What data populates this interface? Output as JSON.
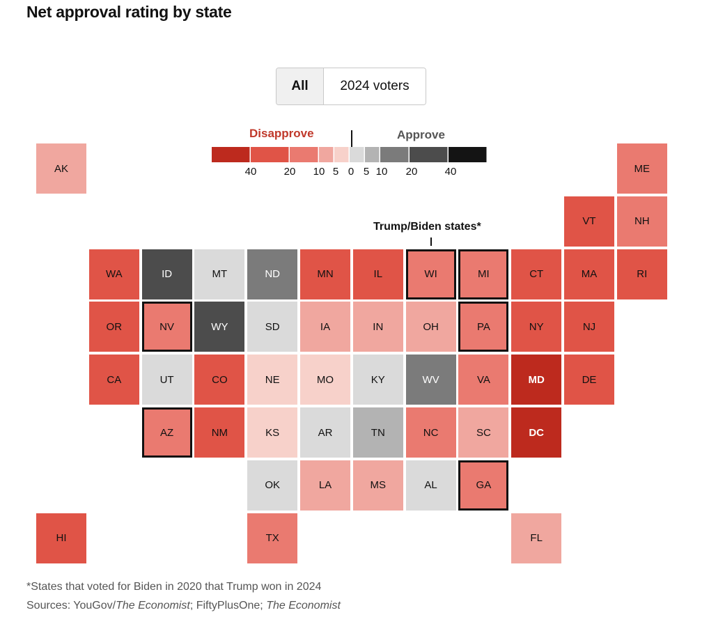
{
  "title": "Net approval rating by state",
  "toggle": {
    "options": [
      "All",
      "2024 voters"
    ],
    "selected": "All"
  },
  "annotation": "Trump/Biden states*",
  "footnote": "*States that voted for Biden in 2020 that Trump won in 2024",
  "sources": {
    "prefix": "Sources: YouGov/",
    "italic1": "The Economist",
    "middle": "; FiftyPlusOne; ",
    "italic2": "The Economist"
  },
  "legend": {
    "disapprove_label": "Disapprove",
    "approve_label": "Approve",
    "ticks": [
      "40",
      "20",
      "10",
      "5",
      "0",
      "5",
      "10",
      "20",
      "40"
    ],
    "colors": [
      "#bd2a1e",
      "#e05447",
      "#ea7a70",
      "#f0a79f",
      "#f7d1ca",
      "#dadada",
      "#b3b3b3",
      "#7b7b7b",
      "#4c4c4c",
      "#141414"
    ]
  },
  "chart_data": {
    "type": "heatmap",
    "title": "Net approval rating by state",
    "scale": "bins of net approval: <-40, -40 to -20, -20 to -10, -10 to -5, -5 to 0, 0 to 5, 5 to 10, 10 to 20, 20 to 40, >40",
    "states": [
      {
        "abbr": "AK",
        "col": 0,
        "row": 0,
        "bin": 3,
        "outlined": false
      },
      {
        "abbr": "ME",
        "col": 11,
        "row": 0,
        "bin": 2,
        "outlined": false
      },
      {
        "abbr": "VT",
        "col": 10,
        "row": 1,
        "bin": 1,
        "outlined": false
      },
      {
        "abbr": "NH",
        "col": 11,
        "row": 1,
        "bin": 2,
        "outlined": false
      },
      {
        "abbr": "WA",
        "col": 1,
        "row": 2,
        "bin": 1,
        "outlined": false
      },
      {
        "abbr": "ID",
        "col": 2,
        "row": 2,
        "bin": 8,
        "outlined": false
      },
      {
        "abbr": "MT",
        "col": 3,
        "row": 2,
        "bin": 5,
        "outlined": false
      },
      {
        "abbr": "ND",
        "col": 4,
        "row": 2,
        "bin": 7,
        "outlined": false
      },
      {
        "abbr": "MN",
        "col": 5,
        "row": 2,
        "bin": 1,
        "outlined": false
      },
      {
        "abbr": "IL",
        "col": 6,
        "row": 2,
        "bin": 1,
        "outlined": false
      },
      {
        "abbr": "WI",
        "col": 7,
        "row": 2,
        "bin": 2,
        "outlined": true
      },
      {
        "abbr": "MI",
        "col": 8,
        "row": 2,
        "bin": 2,
        "outlined": true
      },
      {
        "abbr": "CT",
        "col": 9,
        "row": 2,
        "bin": 1,
        "outlined": false
      },
      {
        "abbr": "MA",
        "col": 10,
        "row": 2,
        "bin": 1,
        "outlined": false
      },
      {
        "abbr": "RI",
        "col": 11,
        "row": 2,
        "bin": 1,
        "outlined": false
      },
      {
        "abbr": "OR",
        "col": 1,
        "row": 3,
        "bin": 1,
        "outlined": false
      },
      {
        "abbr": "NV",
        "col": 2,
        "row": 3,
        "bin": 2,
        "outlined": true
      },
      {
        "abbr": "WY",
        "col": 3,
        "row": 3,
        "bin": 8,
        "outlined": false
      },
      {
        "abbr": "SD",
        "col": 4,
        "row": 3,
        "bin": 5,
        "outlined": false
      },
      {
        "abbr": "IA",
        "col": 5,
        "row": 3,
        "bin": 3,
        "outlined": false
      },
      {
        "abbr": "IN",
        "col": 6,
        "row": 3,
        "bin": 3,
        "outlined": false
      },
      {
        "abbr": "OH",
        "col": 7,
        "row": 3,
        "bin": 3,
        "outlined": false
      },
      {
        "abbr": "PA",
        "col": 8,
        "row": 3,
        "bin": 2,
        "outlined": true
      },
      {
        "abbr": "NY",
        "col": 9,
        "row": 3,
        "bin": 1,
        "outlined": false
      },
      {
        "abbr": "NJ",
        "col": 10,
        "row": 3,
        "bin": 1,
        "outlined": false
      },
      {
        "abbr": "CA",
        "col": 1,
        "row": 4,
        "bin": 1,
        "outlined": false
      },
      {
        "abbr": "UT",
        "col": 2,
        "row": 4,
        "bin": 5,
        "outlined": false
      },
      {
        "abbr": "CO",
        "col": 3,
        "row": 4,
        "bin": 1,
        "outlined": false
      },
      {
        "abbr": "NE",
        "col": 4,
        "row": 4,
        "bin": 4,
        "outlined": false
      },
      {
        "abbr": "MO",
        "col": 5,
        "row": 4,
        "bin": 4,
        "outlined": false
      },
      {
        "abbr": "KY",
        "col": 6,
        "row": 4,
        "bin": 5,
        "outlined": false
      },
      {
        "abbr": "WV",
        "col": 7,
        "row": 4,
        "bin": 7,
        "outlined": false
      },
      {
        "abbr": "VA",
        "col": 8,
        "row": 4,
        "bin": 2,
        "outlined": false
      },
      {
        "abbr": "MD",
        "col": 9,
        "row": 4,
        "bin": 0,
        "outlined": false
      },
      {
        "abbr": "DE",
        "col": 10,
        "row": 4,
        "bin": 1,
        "outlined": false
      },
      {
        "abbr": "AZ",
        "col": 2,
        "row": 5,
        "bin": 2,
        "outlined": true
      },
      {
        "abbr": "NM",
        "col": 3,
        "row": 5,
        "bin": 1,
        "outlined": false
      },
      {
        "abbr": "KS",
        "col": 4,
        "row": 5,
        "bin": 4,
        "outlined": false
      },
      {
        "abbr": "AR",
        "col": 5,
        "row": 5,
        "bin": 5,
        "outlined": false
      },
      {
        "abbr": "TN",
        "col": 6,
        "row": 5,
        "bin": 6,
        "outlined": false
      },
      {
        "abbr": "NC",
        "col": 7,
        "row": 5,
        "bin": 2,
        "outlined": false
      },
      {
        "abbr": "SC",
        "col": 8,
        "row": 5,
        "bin": 3,
        "outlined": false
      },
      {
        "abbr": "DC",
        "col": 9,
        "row": 5,
        "bin": 0,
        "outlined": false
      },
      {
        "abbr": "OK",
        "col": 4,
        "row": 6,
        "bin": 5,
        "outlined": false
      },
      {
        "abbr": "LA",
        "col": 5,
        "row": 6,
        "bin": 3,
        "outlined": false
      },
      {
        "abbr": "MS",
        "col": 6,
        "row": 6,
        "bin": 3,
        "outlined": false
      },
      {
        "abbr": "AL",
        "col": 7,
        "row": 6,
        "bin": 5,
        "outlined": false
      },
      {
        "abbr": "GA",
        "col": 8,
        "row": 6,
        "bin": 2,
        "outlined": true
      },
      {
        "abbr": "HI",
        "col": 0,
        "row": 7,
        "bin": 1,
        "outlined": false
      },
      {
        "abbr": "TX",
        "col": 4,
        "row": 7,
        "bin": 2,
        "outlined": false
      },
      {
        "abbr": "FL",
        "col": 9,
        "row": 7,
        "bin": 3,
        "outlined": false
      }
    ]
  }
}
